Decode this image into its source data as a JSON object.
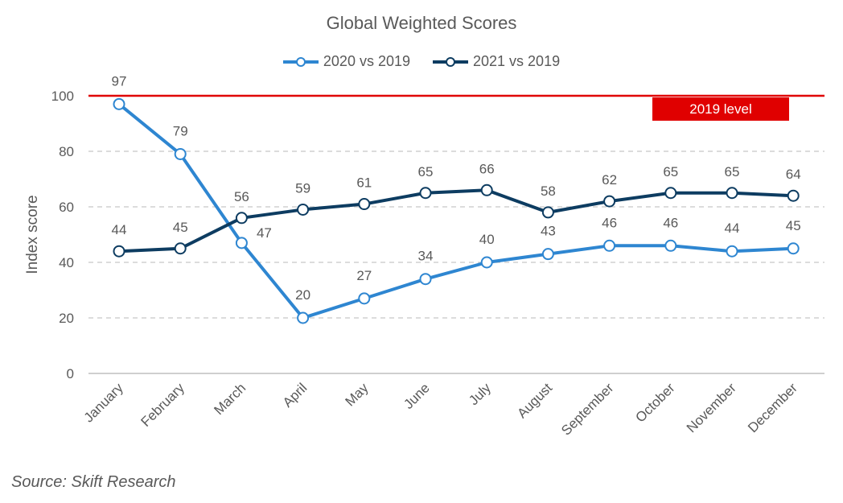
{
  "chart_data": {
    "type": "line",
    "title": "Global Weighted Scores",
    "xlabel": "",
    "ylabel": "Index score",
    "ylim": [
      0,
      100
    ],
    "yticks": [
      0,
      20,
      40,
      60,
      80,
      100
    ],
    "grid": true,
    "legend_position": "top",
    "categories": [
      "January",
      "February",
      "March",
      "April",
      "May",
      "June",
      "July",
      "August",
      "September",
      "October",
      "November",
      "December"
    ],
    "series": [
      {
        "name": "2020 vs 2019",
        "color": "#2e86d1",
        "values": [
          97,
          79,
          47,
          20,
          27,
          34,
          40,
          43,
          46,
          46,
          44,
          45
        ]
      },
      {
        "name": "2021 vs 2019",
        "color": "#0d3c61",
        "values": [
          44,
          45,
          56,
          59,
          61,
          65,
          66,
          58,
          62,
          65,
          65,
          64
        ]
      }
    ],
    "reference_line": {
      "value": 100,
      "label": "2019 level",
      "color": "#e00000"
    }
  },
  "source": "Source: Skift Research"
}
